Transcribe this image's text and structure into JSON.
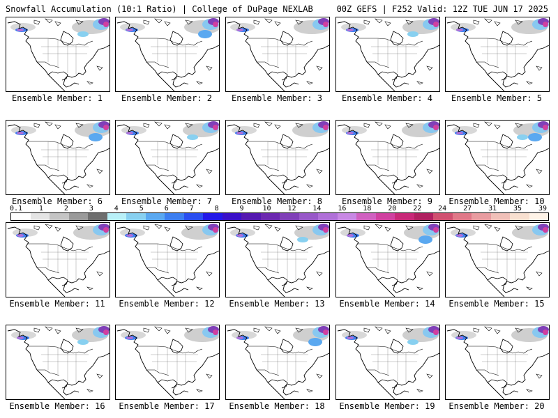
{
  "header": {
    "left": "Snowfall Accumulation (10:1 Ratio) | College of DuPage NEXLAB",
    "right": "00Z GEFS | F252 Valid: 12Z TUE JUN 17 2025"
  },
  "legend": {
    "labels": [
      "0.1",
      "1",
      "2",
      "3",
      "4",
      "5",
      "6",
      "7",
      "8",
      "9",
      "10",
      "12",
      "14",
      "16",
      "18",
      "20",
      "22",
      "24",
      "27",
      "31",
      "35",
      "39"
    ],
    "colors": [
      "#ffffff",
      "#e4e4e4",
      "#c4c4c4",
      "#9a9a9a",
      "#6e6e6e",
      "#b8f0f8",
      "#88d0f0",
      "#5aa8f0",
      "#3c7ef0",
      "#2a4ef0",
      "#2218e8",
      "#3a10c8",
      "#5418b0",
      "#6c28b0",
      "#8040b8",
      "#9858c8",
      "#b070d8",
      "#c888e4",
      "#d060c0",
      "#d040a0",
      "#c82878",
      "#b02060",
      "#d05070",
      "#e07888",
      "#e89ca0",
      "#f0c0b8",
      "#f8e0d0",
      "#fff4e8"
    ]
  },
  "panels": [
    {
      "label": "Ensemble Member: 1"
    },
    {
      "label": "Ensemble Member: 2"
    },
    {
      "label": "Ensemble Member: 3"
    },
    {
      "label": "Ensemble Member: 4"
    },
    {
      "label": "Ensemble Member: 5"
    },
    {
      "label": "Ensemble Member: 6"
    },
    {
      "label": "Ensemble Member: 7"
    },
    {
      "label": "Ensemble Member: 8"
    },
    {
      "label": "Ensemble Member: 9"
    },
    {
      "label": "Ensemble Member: 10"
    },
    {
      "label": "Ensemble Member: 11"
    },
    {
      "label": "Ensemble Member: 12"
    },
    {
      "label": "Ensemble Member: 13"
    },
    {
      "label": "Ensemble Member: 14"
    },
    {
      "label": "Ensemble Member: 15"
    },
    {
      "label": "Ensemble Member: 16"
    },
    {
      "label": "Ensemble Member: 17"
    },
    {
      "label": "Ensemble Member: 18"
    },
    {
      "label": "Ensemble Member: 19"
    },
    {
      "label": "Ensemble Member: 20"
    }
  ]
}
